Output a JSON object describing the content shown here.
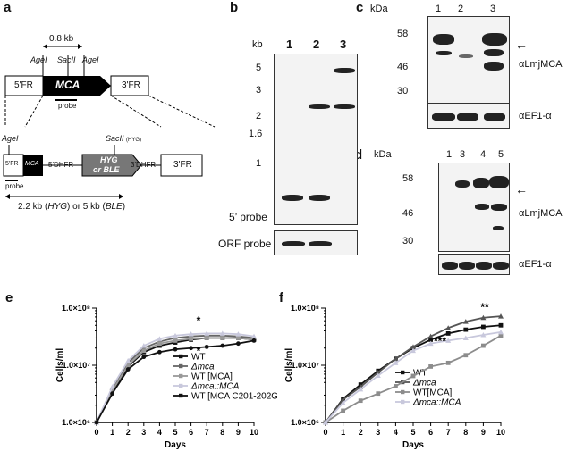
{
  "panels": {
    "a": "a",
    "b": "b",
    "c": "c",
    "d": "d",
    "e": "e",
    "f": "f"
  },
  "panel_a": {
    "size": "0.8 kb",
    "agel1": "AgeI",
    "sacll": "SacII",
    "agel2": "AgeI",
    "fr5": "5'FR",
    "mca": "MCA",
    "fr3": "3'FR",
    "probe1": "probe",
    "agel3": "AgeI",
    "sacll_hyg": "SacII",
    "hyg_tag": "(HYG)",
    "fr5b": "5'FR",
    "mca_b": "MCA",
    "dhfr5": "5'DHFR",
    "hyg_ble_1": "HYG",
    "hyg_ble_2": "or BLE",
    "dhfr3": "3'DHFR",
    "fr3b": "3'FR",
    "probe2": "probe",
    "caption_pre": "2.2 kb (",
    "caption_hyg": "HYG",
    "caption_mid": ") or 5 kb (",
    "caption_ble": "BLE",
    "caption_post": ")"
  },
  "panel_b": {
    "kb": "kb",
    "lanes": [
      "1",
      "2",
      "3"
    ],
    "markers": [
      "5",
      "3",
      "2",
      "1.6",
      "1"
    ],
    "probe5": "5’ probe",
    "orf": "ORF probe"
  },
  "panel_c": {
    "kda": "kDa",
    "lanes": [
      "1",
      "2",
      "3"
    ],
    "markers": [
      "58",
      "46",
      "30"
    ],
    "antibody": "αLmjMCA",
    "loading": "αEF1-α"
  },
  "panel_d": {
    "kda": "kDa",
    "lanes": [
      "1",
      "3",
      "4",
      "5"
    ],
    "markers": [
      "58",
      "46",
      "30"
    ],
    "antibody": "αLmjMCA",
    "loading": "αEF1-α"
  },
  "chart_data": [
    {
      "type": "line",
      "panel": "e",
      "ylabel": "Cells/ml",
      "xlabel": "Days",
      "x": [
        0,
        1,
        2,
        3,
        4,
        5,
        6,
        7,
        8,
        9,
        10
      ],
      "xticks": [
        "0",
        "1",
        "2",
        "3",
        "4",
        "5",
        "6",
        "7",
        "8",
        "9",
        "10"
      ],
      "yticks": [
        "1.0×10⁶",
        "1.0×10⁷",
        "1.0×10⁸"
      ],
      "ylim": [
        1000000,
        100000000
      ],
      "log_y": true,
      "annotations": [
        "*",
        "*"
      ],
      "series": [
        {
          "name": "WT",
          "color": "#111111",
          "values": [
            1000000,
            3500000,
            9500000,
            17000000,
            22000000,
            25000000,
            28000000,
            30000000,
            30000000,
            30000000,
            28000000
          ]
        },
        {
          "name": "Δmca",
          "color": "#666666",
          "values": [
            1000000,
            4000000,
            11000000,
            20000000,
            26000000,
            30000000,
            32000000,
            33000000,
            33000000,
            32000000,
            30000000
          ]
        },
        {
          "name": "WT [MCA]",
          "color": "#999999",
          "values": [
            1000000,
            3600000,
            10000000,
            18000000,
            24000000,
            27000000,
            29000000,
            30000000,
            30000000,
            30000000,
            28000000
          ]
        },
        {
          "name": "Δmca::MCA",
          "color": "#c8c8dc",
          "values": [
            1000000,
            4200000,
            12000000,
            22000000,
            29000000,
            33000000,
            35000000,
            36000000,
            36000000,
            35000000,
            32000000
          ]
        },
        {
          "name": "WT [MCA C201-202G]",
          "color": "#111111",
          "values": [
            1000000,
            3200000,
            8500000,
            14000000,
            17000000,
            19000000,
            20000000,
            21000000,
            22000000,
            24000000,
            27000000
          ]
        }
      ]
    },
    {
      "type": "line",
      "panel": "f",
      "ylabel": "Cells/ml",
      "xlabel": "Days",
      "x": [
        0,
        1,
        2,
        3,
        4,
        5,
        6,
        7,
        8,
        9,
        10
      ],
      "xticks": [
        "0",
        "1",
        "2",
        "3",
        "4",
        "5",
        "6",
        "7",
        "8",
        "9",
        "10"
      ],
      "yticks": [
        "1.0×10⁶",
        "1.0×10⁷",
        "1.0×10⁸"
      ],
      "ylim": [
        1000000,
        100000000
      ],
      "log_y": true,
      "annotations": [
        "**",
        "***"
      ],
      "series": [
        {
          "name": "WT",
          "color": "#111111",
          "values": [
            1000000,
            2600000,
            4600000,
            8000000,
            13000000,
            20000000,
            28000000,
            36000000,
            42000000,
            47000000,
            50000000
          ]
        },
        {
          "name": "Δmca",
          "color": "#555555",
          "values": [
            1000000,
            2500000,
            4200000,
            7500000,
            13000000,
            21000000,
            32000000,
            45000000,
            58000000,
            68000000,
            72000000
          ]
        },
        {
          "name": "WT[MCA]",
          "color": "#8c8c8c",
          "values": [
            1000000,
            1600000,
            2400000,
            3200000,
            4300000,
            6500000,
            9500000,
            11000000,
            15000000,
            22000000,
            33000000
          ]
        },
        {
          "name": "Δmca::MCA",
          "color": "#c8c8dc",
          "values": [
            1000000,
            2200000,
            3800000,
            6600000,
            11000000,
            18000000,
            24000000,
            27000000,
            30000000,
            34000000,
            38000000
          ]
        }
      ]
    }
  ]
}
